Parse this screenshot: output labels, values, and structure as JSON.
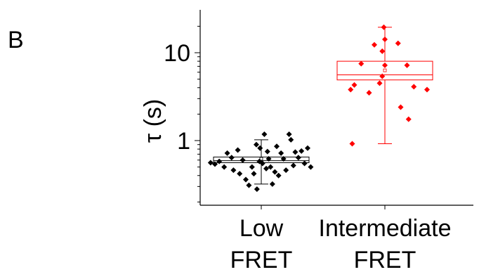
{
  "panel_label": "B",
  "chart_data": {
    "type": "scatter",
    "subtype": "box-and-scatter",
    "title": "",
    "xlabel": "",
    "ylabel": "τ (s)",
    "yscale": "log",
    "ylim": [
      0.2,
      25
    ],
    "yticks": [
      {
        "value": 1,
        "label": "1"
      },
      {
        "value": 10,
        "label": "10"
      }
    ],
    "categories": [
      {
        "line1": "Low",
        "line2": "FRET"
      },
      {
        "line1": "Intermediate",
        "line2": "FRET"
      }
    ],
    "grid": false,
    "legend": "none",
    "series": [
      {
        "color": "#000000",
        "box": {
          "q1": 0.56,
          "median": 0.59,
          "mean": 0.62,
          "q3": 0.65,
          "whisker_low": 0.32,
          "whisker_high": 1.02
        },
        "points": [
          [
            -0.82,
            0.56
          ],
          [
            -0.75,
            0.54
          ],
          [
            -0.68,
            0.58
          ],
          [
            -0.6,
            0.5
          ],
          [
            -0.55,
            0.72
          ],
          [
            -0.48,
            0.64
          ],
          [
            -0.45,
            0.46
          ],
          [
            -0.38,
            0.78
          ],
          [
            -0.35,
            0.42
          ],
          [
            -0.3,
            0.6
          ],
          [
            -0.25,
            0.36
          ],
          [
            -0.2,
            0.31
          ],
          [
            -0.15,
            0.5
          ],
          [
            -0.12,
            0.42
          ],
          [
            -0.07,
            0.28
          ],
          [
            -0.03,
            0.58
          ],
          [
            0.02,
            0.55
          ],
          [
            0.05,
            1.18
          ],
          [
            0.08,
            0.48
          ],
          [
            0.12,
            0.62
          ],
          [
            0.15,
            0.5
          ],
          [
            0.18,
            0.32
          ],
          [
            0.22,
            0.44
          ],
          [
            0.25,
            0.86
          ],
          [
            0.28,
            0.4
          ],
          [
            0.32,
            0.72
          ],
          [
            0.36,
            0.62
          ],
          [
            0.4,
            0.46
          ],
          [
            0.45,
            1.18
          ],
          [
            0.48,
            1.02
          ],
          [
            0.52,
            0.52
          ],
          [
            0.55,
            0.74
          ],
          [
            0.6,
            0.64
          ],
          [
            0.65,
            0.76
          ],
          [
            0.7,
            0.55
          ],
          [
            0.75,
            0.82
          ],
          [
            0.8,
            0.5
          ],
          [
            -0.08,
            0.9
          ],
          [
            -0.02,
            0.82
          ],
          [
            0.1,
            0.75
          ]
        ]
      },
      {
        "color": "#ff0000",
        "box": {
          "q1": 4.9,
          "median": 5.6,
          "mean": 6.3,
          "q3": 8.0,
          "whisker_low": 0.92,
          "whisker_high": 19.5
        },
        "points": [
          [
            -0.02,
            19.5
          ],
          [
            -0.2,
            12.3
          ],
          [
            0.25,
            12.8
          ],
          [
            0.0,
            14.2
          ],
          [
            -0.05,
            10.4
          ],
          [
            -0.45,
            7.5
          ],
          [
            0.0,
            7.2
          ],
          [
            0.42,
            7.2
          ],
          [
            -0.05,
            5.4
          ],
          [
            -0.1,
            4.5
          ],
          [
            -0.58,
            4.3
          ],
          [
            -0.65,
            3.8
          ],
          [
            -0.3,
            3.5
          ],
          [
            0.55,
            4.1
          ],
          [
            0.8,
            3.8
          ],
          [
            0.3,
            2.4
          ],
          [
            0.45,
            1.75
          ],
          [
            -0.62,
            0.92
          ]
        ]
      }
    ]
  }
}
